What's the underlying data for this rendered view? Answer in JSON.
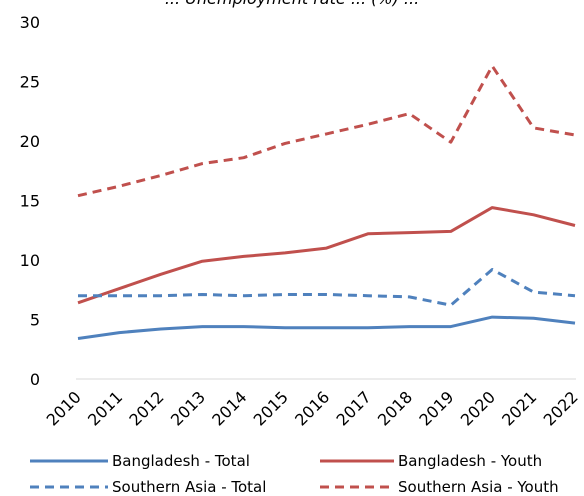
{
  "chart_data": {
    "type": "line",
    "title": "... Unemployment rate ... (%) ...",
    "xlabel": "",
    "ylabel": "",
    "x": [
      "2010",
      "2011",
      "2012",
      "2013",
      "2014",
      "2015",
      "2016",
      "2017",
      "2018",
      "2019",
      "2020",
      "2021",
      "2022"
    ],
    "ylim": [
      0,
      30
    ],
    "yticks": [
      "0",
      "5",
      "10",
      "15",
      "20",
      "25",
      "30"
    ],
    "grid": false,
    "legend_position": "bottom",
    "series": [
      {
        "name": "Bangladesh - Total",
        "color": "#4f81bd",
        "dash": "solid",
        "values": [
          3.4,
          3.9,
          4.2,
          4.4,
          4.4,
          4.3,
          4.3,
          4.3,
          4.4,
          4.4,
          5.2,
          5.1,
          4.7
        ]
      },
      {
        "name": "Bangladesh - Youth",
        "color": "#c0504d",
        "dash": "solid",
        "values": [
          6.4,
          7.6,
          8.8,
          9.9,
          10.3,
          10.6,
          11.0,
          12.2,
          12.3,
          12.4,
          14.4,
          13.8,
          12.9
        ]
      },
      {
        "name": "Southern Asia - Total",
        "color": "#4f81bd",
        "dash": "dashed",
        "values": [
          7.0,
          7.0,
          7.0,
          7.1,
          7.0,
          7.1,
          7.1,
          7.0,
          6.9,
          6.2,
          9.2,
          7.3,
          7.0
        ]
      },
      {
        "name": "Southern Asia - Youth",
        "color": "#c0504d",
        "dash": "dashed",
        "values": [
          15.4,
          16.2,
          17.1,
          18.1,
          18.6,
          19.8,
          20.6,
          21.4,
          22.3,
          19.9,
          26.3,
          21.1,
          20.5
        ]
      }
    ]
  }
}
